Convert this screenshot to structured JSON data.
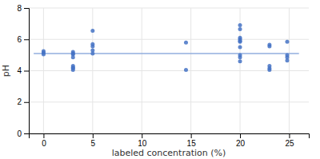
{
  "chart_data": {
    "type": "scatter",
    "xlabel": "labeled concentration (%)",
    "ylabel": "pH",
    "series": [
      {
        "type": "scatter",
        "color": "#4472C4",
        "x": [
          0,
          0,
          0,
          3,
          3,
          3,
          3,
          3,
          3,
          3,
          3,
          5,
          5,
          5,
          5,
          5,
          14.5,
          14.5,
          20,
          20,
          20,
          20,
          20,
          20,
          20,
          20,
          20,
          20,
          23,
          23,
          23,
          23,
          23,
          24.8,
          24.8,
          24.8,
          24.8
        ],
        "values": [
          5.25,
          5.15,
          5.05,
          5.2,
          5.1,
          5.05,
          4.85,
          4.3,
          4.2,
          4.15,
          4.05,
          6.55,
          5.7,
          5.55,
          5.3,
          5.1,
          5.8,
          4.05,
          6.9,
          6.65,
          6.1,
          6.0,
          5.9,
          5.85,
          5.5,
          5.0,
          4.85,
          4.6,
          5.65,
          5.55,
          4.3,
          4.15,
          4.05,
          5.85,
          5.0,
          4.85,
          4.65
        ]
      },
      {
        "type": "line",
        "color": "#92AEDE",
        "x": [
          -1,
          26
        ],
        "values": [
          5.1,
          5.1
        ]
      }
    ],
    "xlim": [
      -1.5,
      27
    ],
    "ylim": [
      0,
      8
    ],
    "xticks": [
      0,
      5,
      10,
      15,
      20,
      25
    ],
    "yticks": [
      0,
      2,
      4,
      6,
      8
    ],
    "grid": true
  }
}
